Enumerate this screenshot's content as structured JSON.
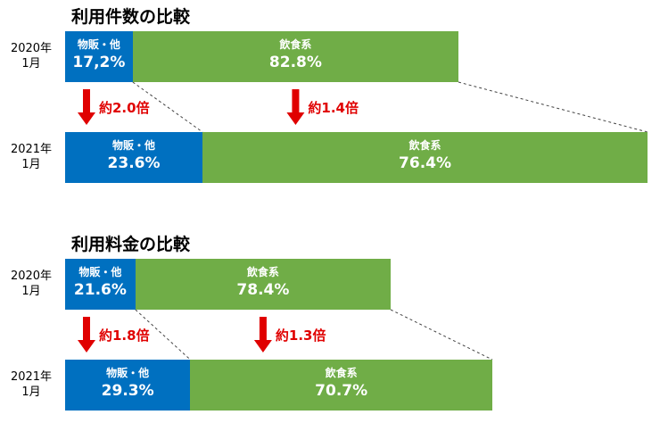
{
  "chart_data": [
    {
      "type": "bar",
      "title": "利用件数の比較",
      "categories": [
        "2020年\n1月",
        "2021年\n1月"
      ],
      "series": [
        {
          "name": "物販・他",
          "color": "#0070c0",
          "values": [
            17.2,
            23.6
          ],
          "value_labels": [
            "17,2%",
            "23.6%"
          ]
        },
        {
          "name": "飲食系",
          "color": "#70ad47",
          "values": [
            82.8,
            76.4
          ],
          "value_labels": [
            "82.8%",
            "76.4%"
          ]
        }
      ],
      "annotations": [
        "約2.0倍",
        "約1.4倍"
      ]
    },
    {
      "type": "bar",
      "title": "利用料金の比較",
      "categories": [
        "2020年\n1月",
        "2021年\n1月"
      ],
      "series": [
        {
          "name": "物販・他",
          "color": "#0070c0",
          "values": [
            21.6,
            29.3
          ],
          "value_labels": [
            "21.6%",
            "29.3%"
          ]
        },
        {
          "name": "飲食系",
          "color": "#70ad47",
          "values": [
            78.4,
            70.7
          ],
          "value_labels": [
            "78.4%",
            "70.7%"
          ]
        }
      ],
      "annotations": [
        "約1.8倍",
        "約1.3倍"
      ]
    }
  ]
}
